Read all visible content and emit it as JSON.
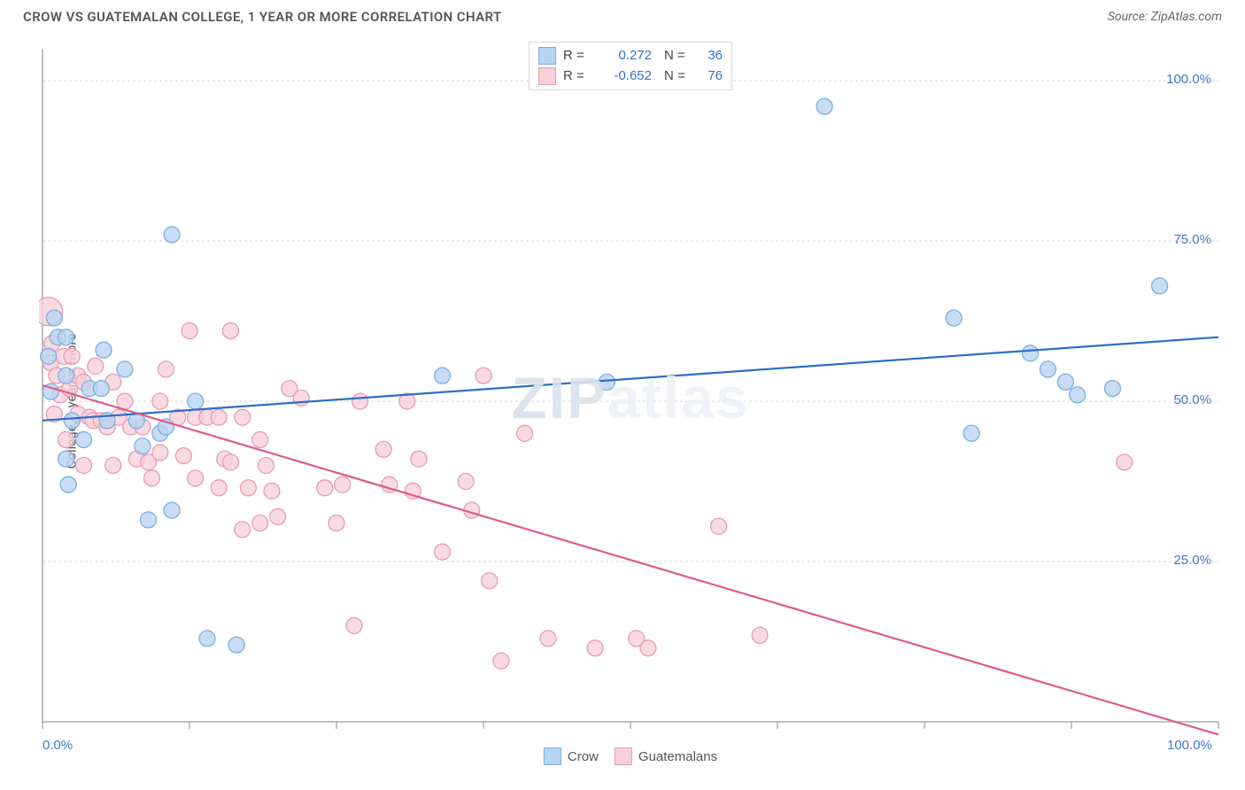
{
  "header": {
    "title": "CROW VS GUATEMALAN COLLEGE, 1 YEAR OR MORE CORRELATION CHART",
    "source_label": "Source:",
    "source_name": "ZipAtlas.com"
  },
  "chart": {
    "type": "scatter",
    "ylabel": "College, 1 year or more",
    "watermark_a": "ZIP",
    "watermark_b": "atlas",
    "xlim": [
      0,
      100
    ],
    "ylim": [
      0,
      105
    ],
    "xtick_positions": [
      0,
      12.5,
      25,
      37.5,
      50,
      62.5,
      75,
      87.5,
      100
    ],
    "xaxis_labels": [
      {
        "v": 0,
        "t": "0.0%"
      },
      {
        "v": 100,
        "t": "100.0%"
      }
    ],
    "yaxis_labels": [
      {
        "v": 25,
        "t": "25.0%"
      },
      {
        "v": 50,
        "t": "50.0%"
      },
      {
        "v": 75,
        "t": "75.0%"
      },
      {
        "v": 100,
        "t": "100.0%"
      }
    ],
    "grid_color": "#d6d6d6",
    "axis_line_color": "#9c9c9c",
    "background_color": "#ffffff",
    "tick_label_color": "#3f78ca",
    "series": [
      {
        "name": "Crow",
        "color_fill": "#b8d4f0",
        "color_stroke": "#7bafe2",
        "line_color": "#2e6fc4",
        "line_width": 2.2,
        "marker_r": 9,
        "R": "0.272",
        "N": "36",
        "trend": {
          "x0": 0,
          "y0": 47,
          "x1": 100,
          "y1": 60
        },
        "points": [
          {
            "x": 0.5,
            "y": 57
          },
          {
            "x": 0.7,
            "y": 51.5
          },
          {
            "x": 1,
            "y": 63
          },
          {
            "x": 1.3,
            "y": 60
          },
          {
            "x": 2,
            "y": 60
          },
          {
            "x": 2,
            "y": 41
          },
          {
            "x": 2,
            "y": 54
          },
          {
            "x": 2.2,
            "y": 37
          },
          {
            "x": 2.5,
            "y": 47
          },
          {
            "x": 3.5,
            "y": 44
          },
          {
            "x": 4,
            "y": 52
          },
          {
            "x": 5,
            "y": 52
          },
          {
            "x": 5.2,
            "y": 58
          },
          {
            "x": 5.5,
            "y": 47
          },
          {
            "x": 7,
            "y": 55
          },
          {
            "x": 8,
            "y": 47
          },
          {
            "x": 8.5,
            "y": 43
          },
          {
            "x": 9,
            "y": 31.5
          },
          {
            "x": 10,
            "y": 45
          },
          {
            "x": 10.5,
            "y": 46
          },
          {
            "x": 11,
            "y": 76
          },
          {
            "x": 11,
            "y": 33
          },
          {
            "x": 13,
            "y": 50
          },
          {
            "x": 14,
            "y": 13
          },
          {
            "x": 16.5,
            "y": 12
          },
          {
            "x": 34,
            "y": 54
          },
          {
            "x": 48,
            "y": 53
          },
          {
            "x": 66.5,
            "y": 96
          },
          {
            "x": 77.5,
            "y": 63
          },
          {
            "x": 79,
            "y": 45
          },
          {
            "x": 84,
            "y": 57.5
          },
          {
            "x": 85.5,
            "y": 55
          },
          {
            "x": 88,
            "y": 51
          },
          {
            "x": 91,
            "y": 52
          },
          {
            "x": 95,
            "y": 68
          },
          {
            "x": 87,
            "y": 53
          }
        ]
      },
      {
        "name": "Guatemalans",
        "color_fill": "#f7cfda",
        "color_stroke": "#e79bb2",
        "line_color": "#e05b84",
        "line_width": 2.2,
        "marker_r": 9,
        "R": "-0.652",
        "N": "76",
        "trend": {
          "x0": 0,
          "y0": 52.5,
          "x1": 100,
          "y1": -2
        },
        "points": [
          {
            "x": 0.5,
            "y": 64,
            "r": 16
          },
          {
            "x": 0.7,
            "y": 56
          },
          {
            "x": 0.8,
            "y": 59
          },
          {
            "x": 1,
            "y": 48
          },
          {
            "x": 1.2,
            "y": 54
          },
          {
            "x": 1.5,
            "y": 51
          },
          {
            "x": 1.8,
            "y": 57
          },
          {
            "x": 2,
            "y": 44
          },
          {
            "x": 2.3,
            "y": 52
          },
          {
            "x": 2.5,
            "y": 57
          },
          {
            "x": 3,
            "y": 48
          },
          {
            "x": 3,
            "y": 54
          },
          {
            "x": 3.5,
            "y": 40
          },
          {
            "x": 3.5,
            "y": 53
          },
          {
            "x": 4,
            "y": 47.5
          },
          {
            "x": 4.3,
            "y": 47
          },
          {
            "x": 4.5,
            "y": 55.5
          },
          {
            "x": 5,
            "y": 47
          },
          {
            "x": 5.5,
            "y": 46
          },
          {
            "x": 6,
            "y": 40
          },
          {
            "x": 6,
            "y": 53
          },
          {
            "x": 6.5,
            "y": 47.5
          },
          {
            "x": 7,
            "y": 50
          },
          {
            "x": 7.5,
            "y": 46
          },
          {
            "x": 8,
            "y": 41
          },
          {
            "x": 8.5,
            "y": 46
          },
          {
            "x": 9,
            "y": 40.5
          },
          {
            "x": 9.3,
            "y": 38
          },
          {
            "x": 10,
            "y": 50
          },
          {
            "x": 10,
            "y": 42
          },
          {
            "x": 10.5,
            "y": 55
          },
          {
            "x": 11.5,
            "y": 47.5
          },
          {
            "x": 12,
            "y": 41.5
          },
          {
            "x": 12.5,
            "y": 61
          },
          {
            "x": 13,
            "y": 47.5
          },
          {
            "x": 13,
            "y": 38
          },
          {
            "x": 14,
            "y": 47.5
          },
          {
            "x": 15,
            "y": 36.5
          },
          {
            "x": 15,
            "y": 47.5
          },
          {
            "x": 15.5,
            "y": 41
          },
          {
            "x": 16,
            "y": 61
          },
          {
            "x": 16,
            "y": 40.5
          },
          {
            "x": 17,
            "y": 47.5
          },
          {
            "x": 17,
            "y": 30
          },
          {
            "x": 17.5,
            "y": 36.5
          },
          {
            "x": 18.5,
            "y": 31
          },
          {
            "x": 18.5,
            "y": 44
          },
          {
            "x": 19,
            "y": 40
          },
          {
            "x": 19.5,
            "y": 36
          },
          {
            "x": 20,
            "y": 32
          },
          {
            "x": 21,
            "y": 52
          },
          {
            "x": 22,
            "y": 50.5
          },
          {
            "x": 24,
            "y": 36.5
          },
          {
            "x": 25,
            "y": 31
          },
          {
            "x": 25.5,
            "y": 37
          },
          {
            "x": 26.5,
            "y": 15
          },
          {
            "x": 27,
            "y": 50
          },
          {
            "x": 29,
            "y": 42.5
          },
          {
            "x": 29.5,
            "y": 37
          },
          {
            "x": 31,
            "y": 50
          },
          {
            "x": 31.5,
            "y": 36
          },
          {
            "x": 32,
            "y": 41
          },
          {
            "x": 34,
            "y": 26.5
          },
          {
            "x": 36,
            "y": 37.5
          },
          {
            "x": 36.5,
            "y": 33
          },
          {
            "x": 37.5,
            "y": 54
          },
          {
            "x": 38,
            "y": 22
          },
          {
            "x": 39,
            "y": 9.5
          },
          {
            "x": 41,
            "y": 45
          },
          {
            "x": 43,
            "y": 13
          },
          {
            "x": 47,
            "y": 11.5
          },
          {
            "x": 50.5,
            "y": 13
          },
          {
            "x": 51.5,
            "y": 11.5
          },
          {
            "x": 57.5,
            "y": 30.5
          },
          {
            "x": 61,
            "y": 13.5
          },
          {
            "x": 92,
            "y": 40.5
          }
        ]
      }
    ],
    "legend_bottom": [
      {
        "name": "Crow",
        "fill": "#b8d4f0",
        "stroke": "#7bafe2"
      },
      {
        "name": "Guatemalans",
        "fill": "#f7cfda",
        "stroke": "#e79bb2"
      }
    ]
  }
}
